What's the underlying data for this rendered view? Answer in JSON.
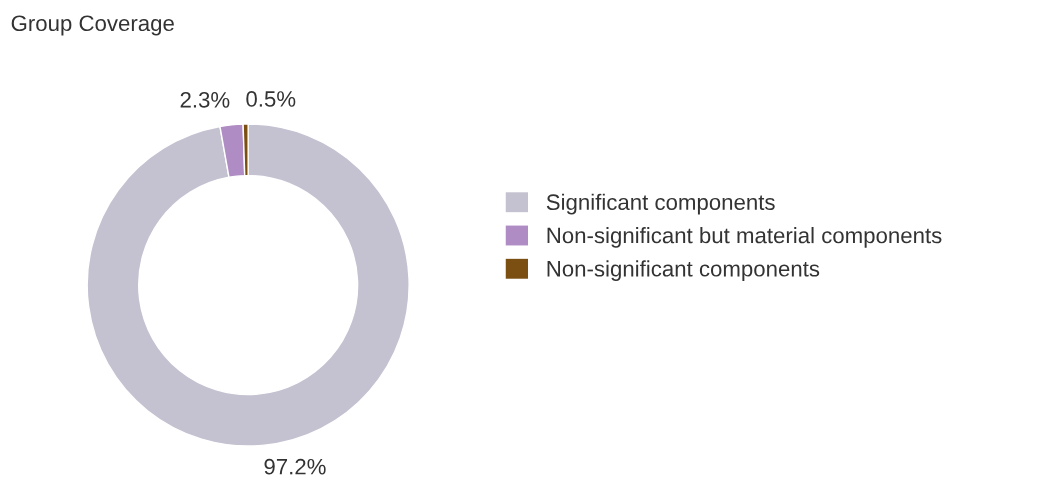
{
  "chart_data": {
    "type": "donut",
    "title": "Group Coverage",
    "categories": [
      "Significant components",
      "Non-significant but material components",
      "Non-significant components"
    ],
    "values": [
      97.2,
      2.3,
      0.5
    ],
    "colors": [
      "#c4c2d1",
      "#b08cc4",
      "#7b4f12"
    ],
    "value_labels": [
      "97.2%",
      "2.3%",
      "0.5%"
    ],
    "legend": "right"
  }
}
